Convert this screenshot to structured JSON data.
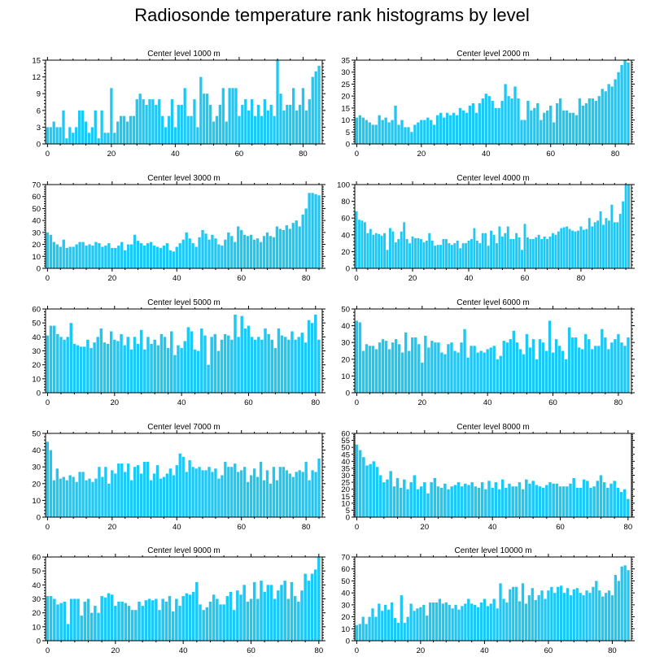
{
  "figure_title": "Radiosonde temperature rank histograms by level",
  "colors": {
    "bar": "#1ec8f5",
    "axis": "#000000",
    "background": "#ffffff"
  },
  "chart_data": [
    {
      "type": "bar",
      "title": "Center level 1000 m",
      "x_start": 0,
      "ylim": [
        0,
        15
      ],
      "yticks": [
        0,
        3,
        6,
        9,
        12,
        15
      ],
      "xticks": [
        0,
        20,
        40,
        60,
        80
      ],
      "values": [
        3,
        3,
        4,
        3,
        3,
        6,
        1,
        3,
        2,
        3,
        6,
        6,
        4,
        2,
        3,
        6,
        1,
        6,
        2,
        2,
        10,
        2,
        4,
        5,
        5,
        4,
        5,
        5,
        8,
        9,
        8,
        7,
        8,
        8,
        7,
        8,
        5,
        3,
        5,
        8,
        3,
        7,
        7,
        10,
        5,
        5,
        8,
        3,
        12,
        9,
        9,
        7,
        4,
        5,
        7,
        10,
        4,
        10,
        10,
        10,
        5,
        7,
        8,
        6,
        8,
        5,
        7,
        5,
        8,
        6,
        7,
        5,
        15,
        9,
        6,
        7,
        7,
        10,
        6,
        7,
        10,
        6,
        8,
        12,
        13,
        14
      ]
    },
    {
      "type": "bar",
      "title": "Center level 2000 m",
      "x_start": 0,
      "ylim": [
        0,
        35
      ],
      "yticks": [
        0,
        5,
        10,
        15,
        20,
        25,
        30,
        35
      ],
      "xticks": [
        0,
        20,
        40,
        60,
        80
      ],
      "values": [
        11,
        12,
        11,
        10,
        9,
        8,
        8,
        12,
        10,
        11,
        9,
        10,
        16,
        8,
        10,
        7,
        7,
        5,
        8,
        9,
        10,
        10,
        11,
        10,
        8,
        12,
        13,
        11,
        13,
        12,
        13,
        12,
        15,
        14,
        13,
        16,
        17,
        13,
        17,
        19,
        21,
        20,
        18,
        15,
        15,
        18,
        25,
        20,
        19,
        24,
        19,
        10,
        10,
        18,
        14,
        15,
        17,
        10,
        13,
        14,
        16,
        9,
        17,
        19,
        14,
        14,
        13,
        13,
        12,
        19,
        16,
        17,
        19,
        19,
        18,
        20,
        23,
        22,
        25,
        24,
        27,
        30,
        33,
        35,
        34
      ]
    },
    {
      "type": "bar",
      "title": "Center level 3000 m",
      "x_start": 0,
      "ylim": [
        0,
        70
      ],
      "yticks": [
        0,
        10,
        20,
        30,
        40,
        50,
        60,
        70
      ],
      "xticks": [
        0,
        20,
        40,
        60,
        80
      ],
      "values": [
        30,
        28,
        22,
        20,
        18,
        24,
        17,
        18,
        18,
        20,
        22,
        22,
        19,
        20,
        19,
        22,
        21,
        18,
        19,
        21,
        17,
        17,
        19,
        22,
        15,
        20,
        20,
        28,
        23,
        21,
        19,
        21,
        22,
        19,
        18,
        17,
        19,
        21,
        15,
        14,
        18,
        21,
        24,
        30,
        25,
        21,
        18,
        26,
        32,
        29,
        24,
        28,
        25,
        20,
        19,
        24,
        30,
        27,
        22,
        35,
        32,
        28,
        27,
        28,
        24,
        25,
        22,
        27,
        30,
        27,
        26,
        35,
        33,
        32,
        36,
        33,
        38,
        40,
        35,
        45,
        50,
        63,
        63,
        62,
        61
      ]
    },
    {
      "type": "bar",
      "title": "Center level 4000 m",
      "x_start": 0,
      "ylim": [
        0,
        100
      ],
      "yticks": [
        0,
        20,
        40,
        60,
        80,
        100
      ],
      "xticks": [
        0,
        20,
        40,
        60,
        80
      ],
      "values": [
        68,
        58,
        57,
        55,
        42,
        47,
        40,
        42,
        41,
        39,
        42,
        22,
        48,
        44,
        31,
        35,
        44,
        55,
        35,
        30,
        38,
        36,
        36,
        35,
        31,
        33,
        42,
        33,
        27,
        28,
        28,
        35,
        35,
        30,
        28,
        30,
        33,
        24,
        30,
        30,
        33,
        35,
        48,
        33,
        30,
        42,
        42,
        27,
        45,
        40,
        30,
        50,
        38,
        42,
        50,
        35,
        35,
        42,
        37,
        22,
        53,
        37,
        35,
        35,
        37,
        40,
        35,
        38,
        35,
        38,
        42,
        40,
        44,
        48,
        49,
        50,
        47,
        45,
        44,
        45,
        50,
        46,
        47,
        60,
        50,
        55,
        57,
        68,
        52,
        60,
        57,
        76,
        55,
        55,
        65,
        80,
        100,
        100
      ]
    },
    {
      "type": "bar",
      "title": "Center level 5000 m",
      "x_start": 0,
      "ylim": [
        0,
        60
      ],
      "yticks": [
        0,
        10,
        20,
        30,
        40,
        50,
        60
      ],
      "xticks": [
        0,
        20,
        40,
        60,
        80
      ],
      "values": [
        41,
        48,
        48,
        42,
        40,
        38,
        40,
        50,
        35,
        34,
        33,
        33,
        38,
        32,
        36,
        40,
        46,
        36,
        35,
        44,
        38,
        37,
        42,
        34,
        40,
        31,
        40,
        35,
        45,
        31,
        40,
        35,
        38,
        34,
        42,
        40,
        32,
        44,
        27,
        34,
        32,
        37,
        47,
        44,
        31,
        30,
        46,
        41,
        20,
        40,
        42,
        30,
        38,
        42,
        41,
        38,
        56,
        40,
        55,
        46,
        48,
        40,
        38,
        40,
        38,
        46,
        42,
        38,
        32,
        46,
        41,
        40,
        38,
        44,
        38,
        40,
        43,
        36,
        52,
        50,
        56,
        38
      ]
    },
    {
      "type": "bar",
      "title": "Center level 6000 m",
      "x_start": 0,
      "ylim": [
        0,
        50
      ],
      "yticks": [
        0,
        10,
        20,
        30,
        40,
        50
      ],
      "xticks": [
        0,
        20,
        40,
        60,
        80
      ],
      "values": [
        43,
        42,
        25,
        29,
        28,
        28,
        26,
        30,
        32,
        31,
        26,
        30,
        32,
        29,
        24,
        36,
        25,
        33,
        33,
        29,
        18,
        34,
        27,
        31,
        30,
        30,
        24,
        23,
        29,
        30,
        25,
        24,
        30,
        38,
        21,
        28,
        28,
        24,
        25,
        24,
        26,
        27,
        28,
        20,
        22,
        31,
        30,
        32,
        37,
        30,
        26,
        23,
        35,
        27,
        32,
        20,
        32,
        30,
        25,
        43,
        24,
        32,
        28,
        25,
        20,
        39,
        33,
        33,
        27,
        26,
        35,
        32,
        26,
        28,
        28,
        38,
        33,
        26,
        30,
        32,
        35,
        30,
        28,
        33
      ]
    },
    {
      "type": "bar",
      "title": "Center level 7000 m",
      "x_start": 0,
      "ylim": [
        0,
        50
      ],
      "yticks": [
        0,
        10,
        20,
        30,
        40,
        50
      ],
      "xticks": [
        0,
        20,
        40,
        60,
        80
      ],
      "values": [
        45,
        40,
        22,
        29,
        23,
        24,
        22,
        25,
        24,
        21,
        27,
        27,
        22,
        23,
        21,
        23,
        30,
        24,
        30,
        20,
        28,
        26,
        32,
        32,
        27,
        32,
        22,
        30,
        31,
        26,
        33,
        33,
        22,
        26,
        31,
        23,
        24,
        26,
        29,
        25,
        31,
        38,
        36,
        27,
        34,
        30,
        29,
        30,
        28,
        28,
        30,
        27,
        29,
        23,
        25,
        33,
        30,
        30,
        32,
        27,
        28,
        30,
        21,
        25,
        29,
        24,
        33,
        22,
        28,
        20,
        30,
        22,
        30,
        30,
        28,
        26,
        24,
        27,
        28,
        27,
        33,
        22,
        28,
        27,
        35
      ]
    },
    {
      "type": "bar",
      "title": "Center level 8000 m",
      "x_start": 0,
      "ylim": [
        0,
        60
      ],
      "yticks": [
        0,
        5,
        10,
        15,
        20,
        25,
        30,
        35,
        40,
        45,
        50,
        55,
        60
      ],
      "xticks": [
        0,
        20,
        40,
        60,
        80
      ],
      "values": [
        52,
        48,
        43,
        37,
        38,
        40,
        36,
        30,
        25,
        27,
        33,
        22,
        28,
        21,
        27,
        20,
        25,
        30,
        20,
        22,
        25,
        17,
        25,
        28,
        22,
        21,
        24,
        20,
        22,
        23,
        25,
        22,
        24,
        23,
        25,
        22,
        21,
        25,
        20,
        26,
        21,
        25,
        20,
        27,
        21,
        24,
        22,
        22,
        25,
        20,
        27,
        24,
        26,
        23,
        22,
        21,
        23,
        25,
        24,
        24,
        22,
        22,
        22,
        24,
        28,
        21,
        21,
        27,
        26,
        21,
        22,
        26,
        30,
        25,
        21,
        24,
        26,
        21,
        18,
        20,
        13
      ]
    },
    {
      "type": "bar",
      "title": "Center level 9000 m",
      "x_start": 0,
      "ylim": [
        0,
        60
      ],
      "yticks": [
        0,
        10,
        20,
        30,
        40,
        50,
        60
      ],
      "xticks": [
        0,
        20,
        40,
        60,
        80
      ],
      "values": [
        32,
        32,
        30,
        26,
        27,
        28,
        12,
        30,
        30,
        30,
        18,
        28,
        30,
        20,
        25,
        20,
        32,
        31,
        34,
        33,
        25,
        28,
        28,
        27,
        25,
        22,
        22,
        28,
        25,
        29,
        30,
        29,
        30,
        22,
        30,
        28,
        32,
        21,
        30,
        25,
        32,
        34,
        33,
        35,
        42,
        26,
        22,
        24,
        28,
        33,
        30,
        26,
        26,
        32,
        35,
        22,
        36,
        33,
        40,
        28,
        30,
        42,
        30,
        43,
        35,
        40,
        40,
        30,
        36,
        40,
        43,
        30,
        42,
        32,
        28,
        36,
        48,
        43,
        48,
        51,
        60
      ]
    },
    {
      "type": "bar",
      "title": "Center level 10000 m",
      "x_start": 0,
      "ylim": [
        0,
        70
      ],
      "yticks": [
        0,
        10,
        20,
        30,
        40,
        50,
        60,
        70
      ],
      "xticks": [
        0,
        20,
        40,
        60,
        80
      ],
      "values": [
        13,
        14,
        20,
        14,
        20,
        27,
        20,
        31,
        25,
        30,
        26,
        32,
        19,
        15,
        38,
        15,
        20,
        31,
        25,
        27,
        28,
        30,
        21,
        32,
        32,
        32,
        35,
        31,
        32,
        30,
        27,
        30,
        26,
        29,
        31,
        35,
        31,
        30,
        28,
        32,
        35,
        29,
        31,
        35,
        27,
        48,
        35,
        32,
        43,
        45,
        45,
        33,
        48,
        31,
        38,
        44,
        34,
        38,
        42,
        35,
        42,
        45,
        40,
        45,
        46,
        40,
        44,
        38,
        43,
        44,
        40,
        38,
        42,
        40,
        45,
        50,
        42,
        37,
        40,
        42,
        38,
        55,
        50,
        62,
        63,
        59
      ]
    }
  ]
}
